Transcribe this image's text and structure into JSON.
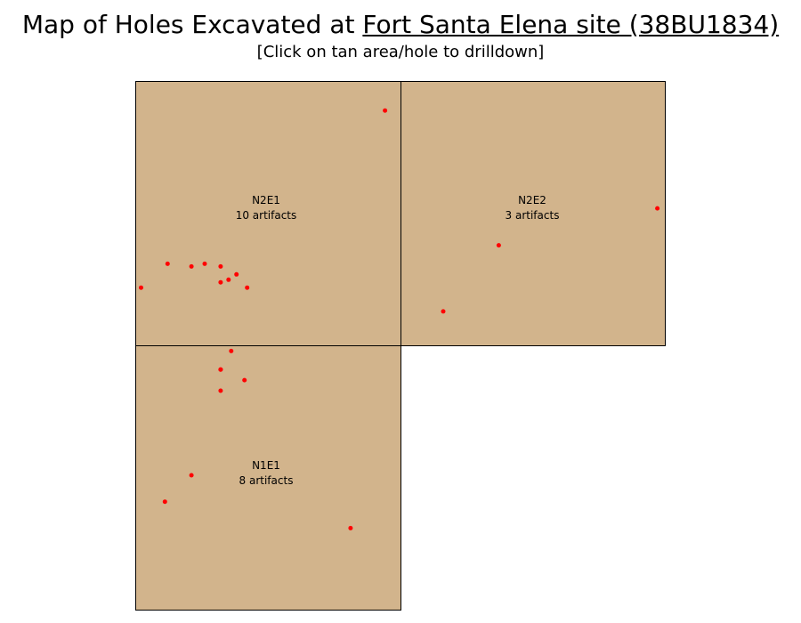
{
  "page": {
    "title_prefix": "Map of Holes Excavated at ",
    "site_name": "Fort Santa Elena site (38BU1834)",
    "subtitle": "[Click on tan area/hole to drilldown]"
  },
  "colors": {
    "unit_fill": "#d2b48c",
    "unit_stroke": "#000000",
    "hole": "#ff0000"
  },
  "units": [
    {
      "name": "N2E1",
      "count_label": "10 artifacts",
      "holes": [
        [
          0.94,
          0.11
        ],
        [
          0.02,
          0.78
        ],
        [
          0.12,
          0.69
        ],
        [
          0.21,
          0.7
        ],
        [
          0.26,
          0.69
        ],
        [
          0.32,
          0.7
        ],
        [
          0.32,
          0.76
        ],
        [
          0.35,
          0.75
        ],
        [
          0.38,
          0.73
        ],
        [
          0.42,
          0.78
        ]
      ]
    },
    {
      "name": "N2E2",
      "count_label": "3 artifacts",
      "holes": [
        [
          0.97,
          0.48
        ],
        [
          0.37,
          0.62
        ],
        [
          0.16,
          0.87
        ]
      ]
    },
    {
      "name": "N1E1",
      "count_label": "8 artifacts",
      "holes": [
        [
          0.36,
          0.02
        ],
        [
          0.32,
          0.09
        ],
        [
          0.32,
          0.09
        ],
        [
          0.41,
          0.13
        ],
        [
          0.32,
          0.17
        ],
        [
          0.21,
          0.49
        ],
        [
          0.11,
          0.59
        ],
        [
          0.81,
          0.69
        ]
      ]
    }
  ]
}
